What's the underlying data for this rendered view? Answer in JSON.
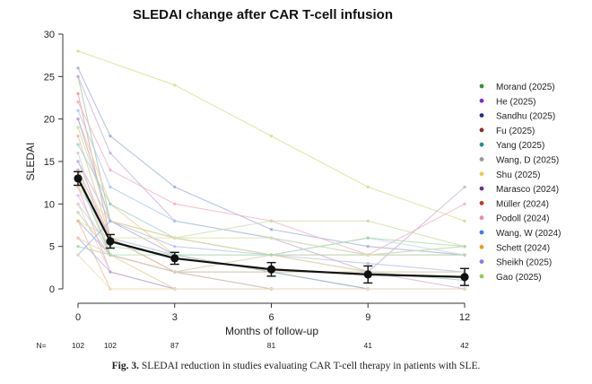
{
  "caption": {
    "label": "Fig. 3.",
    "text": "SLEDAI reduction in studies evaluating CAR T-cell therapy in patients with SLE."
  },
  "chart_data": {
    "type": "line",
    "title": "SLEDAI change after CAR T-cell infusion",
    "xlabel": "Months of follow-up",
    "ylabel": "SLEDAI",
    "xlim": [
      0,
      12
    ],
    "ylim": [
      0,
      30
    ],
    "x_ticks": [
      0,
      3,
      6,
      9,
      12
    ],
    "y_ticks": [
      0,
      5,
      10,
      15,
      20,
      25,
      30
    ],
    "grid": false,
    "legend_position": "right",
    "n_label": "N=",
    "n_at_risk": [
      {
        "x": 0,
        "n": "102"
      },
      {
        "x": 1,
        "n": "102"
      },
      {
        "x": 3,
        "n": "87"
      },
      {
        "x": 6,
        "n": "81"
      },
      {
        "x": 9,
        "n": "41"
      },
      {
        "x": 12,
        "n": "42"
      }
    ],
    "summary": {
      "x": [
        0,
        1,
        3,
        6,
        9,
        12
      ],
      "mean": [
        13,
        5.6,
        3.6,
        2.3,
        1.7,
        1.4
      ],
      "err": [
        0.8,
        0.8,
        0.7,
        0.8,
        1.0,
        1.0
      ],
      "color": "#111111"
    },
    "legend": [
      {
        "name": "Morand (2025)",
        "color": "#3f8f3f"
      },
      {
        "name": "He (2025)",
        "color": "#7b2fd0"
      },
      {
        "name": "Sandhu (2025)",
        "color": "#1c2f8f"
      },
      {
        "name": "Fu (2025)",
        "color": "#8b2f2f"
      },
      {
        "name": "Yang (2025)",
        "color": "#1f8f8f"
      },
      {
        "name": "Wang, D (2025)",
        "color": "#9a9a9a"
      },
      {
        "name": "Shu (2025)",
        "color": "#f2c94c"
      },
      {
        "name": "Marasco (2024)",
        "color": "#6a2f8f"
      },
      {
        "name": "Müller (2024)",
        "color": "#c0392b"
      },
      {
        "name": "Podoll (2024)",
        "color": "#e88ab0"
      },
      {
        "name": "Wang, W (2024)",
        "color": "#3b7de0"
      },
      {
        "name": "Schett (2024)",
        "color": "#f39c12"
      },
      {
        "name": "Sheikh (2025)",
        "color": "#7f7fe0"
      },
      {
        "name": "Gao (2025)",
        "color": "#8fd14f"
      }
    ],
    "series": [
      {
        "color": "#d6e08a",
        "x": [
          0,
          3,
          6,
          9,
          12
        ],
        "y": [
          28,
          24,
          18,
          12,
          8
        ]
      },
      {
        "color": "#9fb0d8",
        "x": [
          0,
          1,
          3,
          6,
          9,
          12
        ],
        "y": [
          26,
          18,
          12,
          7,
          5,
          4
        ]
      },
      {
        "color": "#9ec99e",
        "x": [
          0,
          1,
          3,
          6,
          9,
          12
        ],
        "y": [
          25,
          8,
          6,
          4,
          2,
          1
        ]
      },
      {
        "color": "#c9b0d8",
        "x": [
          0,
          1,
          3,
          6,
          9,
          12
        ],
        "y": [
          25,
          16,
          8,
          6,
          2,
          12
        ]
      },
      {
        "color": "#e0a0a0",
        "x": [
          0,
          1,
          3,
          6
        ],
        "y": [
          23,
          6,
          2,
          0
        ]
      },
      {
        "color": "#f0b0c8",
        "x": [
          0,
          1,
          3,
          6,
          9,
          12
        ],
        "y": [
          22,
          14,
          10,
          8,
          4,
          10
        ]
      },
      {
        "color": "#a8c8f0",
        "x": [
          0,
          1,
          3,
          6,
          9,
          12
        ],
        "y": [
          21,
          12,
          8,
          6,
          4,
          5
        ]
      },
      {
        "color": "#f3d08a",
        "x": [
          0,
          1,
          3,
          6,
          9,
          12
        ],
        "y": [
          20,
          10,
          4,
          2,
          0,
          0
        ]
      },
      {
        "color": "#b8a0e0",
        "x": [
          0,
          1,
          3,
          6
        ],
        "y": [
          20,
          8,
          4,
          2
        ]
      },
      {
        "color": "#c8e0a0",
        "x": [
          0,
          1,
          3,
          6,
          9,
          12
        ],
        "y": [
          19,
          8,
          6,
          8,
          8,
          5
        ]
      },
      {
        "color": "#e8c0a0",
        "x": [
          0,
          1,
          3,
          6,
          9
        ],
        "y": [
          18,
          6,
          2,
          0,
          0
        ]
      },
      {
        "color": "#a0d0d0",
        "x": [
          0,
          1,
          3,
          6,
          9,
          12
        ],
        "y": [
          17,
          10,
          6,
          4,
          4,
          4
        ]
      },
      {
        "color": "#d0d0d0",
        "x": [
          0,
          1,
          3,
          6
        ],
        "y": [
          16,
          4,
          2,
          0
        ]
      },
      {
        "color": "#f0c0a0",
        "x": [
          0,
          1,
          3
        ],
        "y": [
          15,
          6,
          4
        ]
      },
      {
        "color": "#b0c0e8",
        "x": [
          0,
          1,
          3,
          6,
          9,
          12
        ],
        "y": [
          15,
          8,
          5,
          4,
          3,
          2
        ]
      },
      {
        "color": "#e0d090",
        "x": [
          0,
          1,
          3,
          6,
          9
        ],
        "y": [
          14,
          4,
          0,
          0,
          0
        ]
      },
      {
        "color": "#d0b0d0",
        "x": [
          0,
          1,
          3,
          6,
          9,
          12
        ],
        "y": [
          14,
          6,
          4,
          2,
          2,
          0
        ]
      },
      {
        "color": "#a0c8a0",
        "x": [
          0,
          1,
          3,
          6,
          9,
          12
        ],
        "y": [
          13,
          4,
          2,
          2,
          0,
          0
        ]
      },
      {
        "color": "#f0a8a8",
        "x": [
          0,
          1,
          3,
          6
        ],
        "y": [
          12,
          2,
          0,
          0
        ]
      },
      {
        "color": "#c0d8f0",
        "x": [
          0,
          1,
          3,
          6,
          9,
          12
        ],
        "y": [
          12,
          6,
          4,
          4,
          6,
          4
        ]
      },
      {
        "color": "#f0d8a0",
        "x": [
          0,
          1,
          3,
          6,
          9,
          12
        ],
        "y": [
          12,
          8,
          6,
          4,
          2,
          2
        ]
      },
      {
        "color": "#d8c0f0",
        "x": [
          0,
          1,
          3
        ],
        "y": [
          11,
          4,
          2
        ]
      },
      {
        "color": "#b0e0c0",
        "x": [
          0,
          1,
          3,
          6,
          9,
          12
        ],
        "y": [
          10,
          5,
          4,
          2,
          2,
          2
        ]
      },
      {
        "color": "#f0c8d8",
        "x": [
          0,
          1,
          3,
          6,
          9
        ],
        "y": [
          10,
          2,
          0,
          0,
          0
        ]
      },
      {
        "color": "#c8d0a0",
        "x": [
          0,
          1,
          3,
          6,
          9,
          12
        ],
        "y": [
          9,
          4,
          2,
          4,
          4,
          4
        ]
      },
      {
        "color": "#a0b8e0",
        "x": [
          0,
          1,
          3,
          6,
          9,
          12
        ],
        "y": [
          8,
          4,
          2,
          2,
          0,
          0
        ]
      },
      {
        "color": "#e0e0a0",
        "x": [
          0,
          1,
          3,
          6,
          9,
          12
        ],
        "y": [
          8,
          6,
          6,
          6,
          4,
          5
        ]
      },
      {
        "color": "#f0b890",
        "x": [
          0,
          1,
          3,
          6
        ],
        "y": [
          8,
          0,
          0,
          0
        ]
      },
      {
        "color": "#b0b0e0",
        "x": [
          0,
          1,
          3,
          6,
          9,
          12
        ],
        "y": [
          6,
          2,
          0,
          0,
          0,
          0
        ]
      },
      {
        "color": "#f0d0b0",
        "x": [
          0,
          1,
          3,
          6,
          9,
          12
        ],
        "y": [
          6,
          4,
          2,
          2,
          2,
          2
        ]
      },
      {
        "color": "#a8d8a8",
        "x": [
          0,
          1,
          3,
          6,
          9,
          12
        ],
        "y": [
          5,
          4,
          4,
          4,
          6,
          5
        ]
      },
      {
        "color": "#90b8f0",
        "x": [
          0,
          1
        ],
        "y": [
          4,
          8
        ]
      },
      {
        "color": "#f0e0b0",
        "x": [
          0,
          1,
          3,
          6,
          9,
          12
        ],
        "y": [
          4,
          0,
          0,
          0,
          0,
          0
        ]
      }
    ]
  }
}
